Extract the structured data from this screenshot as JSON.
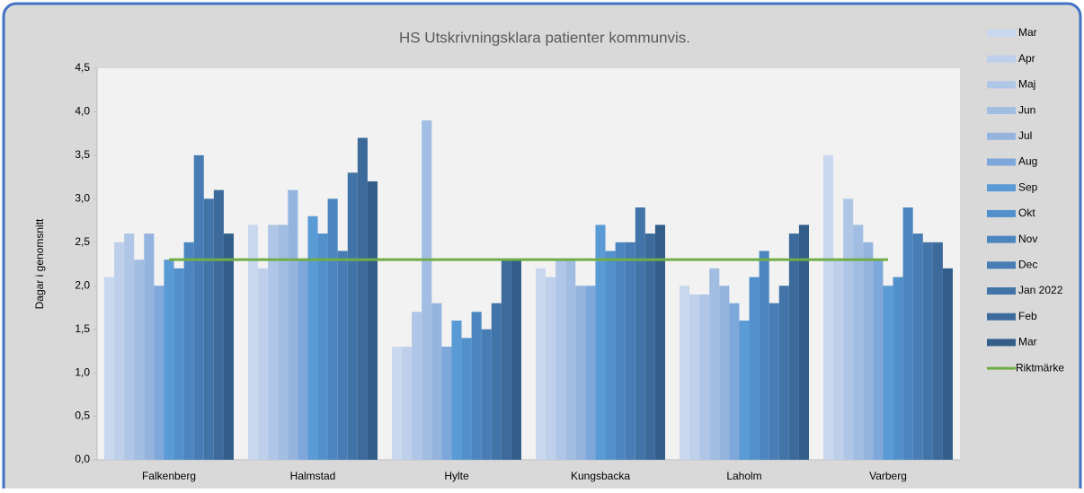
{
  "chart_data": {
    "type": "bar",
    "title": "HS Utskrivningsklara patienter kommunvis.",
    "y_label": "Dagar i genomsnitt",
    "categories": [
      "Falkenberg",
      "Halmstad",
      "Hylte",
      "Kungsbacka",
      "Laholm",
      "Varberg"
    ],
    "ylim": [
      0,
      4.5
    ],
    "yticks": [
      {
        "value": 0,
        "label": "0,0"
      },
      {
        "value": 0.5,
        "label": "0,5"
      },
      {
        "value": 1,
        "label": "1,0"
      },
      {
        "value": 1.5,
        "label": "1,5"
      },
      {
        "value": 2,
        "label": "2,0"
      },
      {
        "value": 2.5,
        "label": "2,5"
      },
      {
        "value": 3,
        "label": "3,0"
      },
      {
        "value": 3.5,
        "label": "3,5"
      },
      {
        "value": 4,
        "label": "4,0"
      },
      {
        "value": 4.5,
        "label": "4,5"
      }
    ],
    "legend": "right",
    "series": [
      {
        "name": "Mar",
        "color": "#c9d8ee",
        "values": [
          2.1,
          2.7,
          1.3,
          2.2,
          2.0,
          3.5
        ]
      },
      {
        "name": "Apr",
        "color": "#bdcfea",
        "values": [
          2.5,
          2.2,
          1.3,
          2.1,
          1.9,
          2.3
        ]
      },
      {
        "name": "Maj",
        "color": "#afc6e6",
        "values": [
          2.6,
          2.7,
          1.7,
          2.3,
          1.9,
          3.0
        ]
      },
      {
        "name": "Jun",
        "color": "#a2bde2",
        "values": [
          2.3,
          2.7,
          3.9,
          2.3,
          2.2,
          2.7
        ]
      },
      {
        "name": "Jul",
        "color": "#94b3de",
        "values": [
          2.6,
          3.1,
          1.8,
          2.0,
          2.0,
          2.5
        ]
      },
      {
        "name": "Aug",
        "color": "#7ea7dc",
        "values": [
          2.0,
          2.3,
          1.3,
          2.0,
          1.8,
          2.3
        ]
      },
      {
        "name": "Sep",
        "color": "#5b9bd5",
        "values": [
          2.3,
          2.8,
          1.6,
          2.7,
          1.6,
          2.0
        ]
      },
      {
        "name": "Okt",
        "color": "#5290cc",
        "values": [
          2.2,
          2.6,
          1.4,
          2.4,
          2.1,
          2.1
        ]
      },
      {
        "name": "Nov",
        "color": "#4c86c0",
        "values": [
          2.5,
          3.0,
          1.7,
          2.5,
          2.4,
          2.9
        ]
      },
      {
        "name": "Dec",
        "color": "#477db4",
        "values": [
          3.5,
          2.4,
          1.5,
          2.5,
          1.8,
          2.6
        ]
      },
      {
        "name": "Jan  2022",
        "color": "#4274a8",
        "values": [
          3.0,
          3.3,
          1.8,
          2.9,
          2.0,
          2.5
        ]
      },
      {
        "name": "Feb",
        "color": "#3c6a9a",
        "values": [
          3.1,
          3.7,
          2.3,
          2.6,
          2.6,
          2.5
        ]
      },
      {
        "name": "Mar",
        "color": "#345e8a",
        "values": [
          2.6,
          3.2,
          2.3,
          2.7,
          2.7,
          2.2
        ]
      },
      {
        "name": "Riktmärke",
        "type": "line",
        "color": "#70ad47",
        "values": [
          2.3,
          2.3,
          2.3,
          2.3,
          2.3,
          2.3
        ]
      }
    ]
  }
}
